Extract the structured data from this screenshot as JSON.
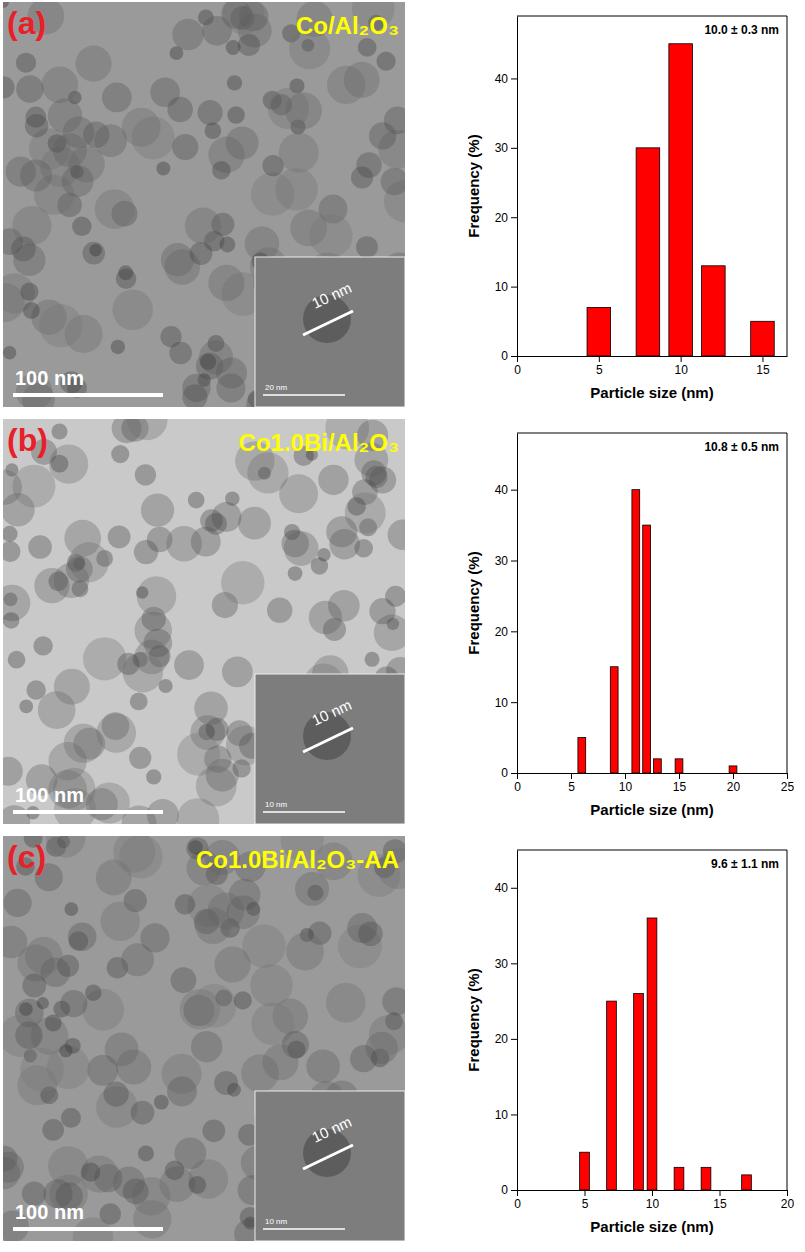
{
  "chart_data": [
    {
      "type": "bar",
      "panel_label": "(a)",
      "title": "Co/Al₂O₃",
      "scale_bar": "100 nm",
      "inset_labels": [
        "10 nm",
        "20 nm"
      ],
      "annotation": "10.0 ± 0.3 nm",
      "x_label": "Particle size (nm)",
      "y_label": "Frequency (%)",
      "x": [
        5,
        8,
        10,
        12,
        15
      ],
      "values": [
        7,
        30,
        45,
        13,
        5
      ],
      "color": "#ff0000",
      "xlim": [
        0,
        16.5
      ],
      "xticks": [
        0,
        5,
        10,
        15
      ],
      "ylim": [
        0,
        49
      ],
      "yticks": [
        0,
        10,
        20,
        30,
        40
      ]
    },
    {
      "type": "bar",
      "panel_label": "(b)",
      "title": "Co1.0Bi/Al₂O₃",
      "scale_bar": "100 nm",
      "inset_labels": [
        "10 nm",
        "10 nm"
      ],
      "annotation": "10.8 ± 0.5 nm",
      "x_label": "Particle size (nm)",
      "y_label": "Frequency (%)",
      "x": [
        6,
        9,
        11,
        12,
        13,
        15,
        20
      ],
      "values": [
        5,
        15,
        40,
        35,
        2,
        2,
        1
      ],
      "color": "#ff0000",
      "xlim": [
        0,
        25
      ],
      "xticks": [
        0,
        5,
        10,
        15,
        20,
        25
      ],
      "ylim": [
        0,
        48
      ],
      "yticks": [
        0,
        10,
        20,
        30,
        40
      ]
    },
    {
      "type": "bar",
      "panel_label": "(c)",
      "title": "Co1.0Bi/Al₂O₃-AA",
      "scale_bar": "100 nm",
      "inset_labels": [
        "10 nm",
        "10 nm"
      ],
      "annotation": "9.6 ± 1.1 nm",
      "x_label": "Particle size (nm)",
      "y_label": "Frequency (%)",
      "x": [
        5,
        7,
        9,
        10,
        12,
        14,
        17
      ],
      "values": [
        5,
        25,
        26,
        36,
        3,
        3,
        2
      ],
      "color": "#ff0000",
      "xlim": [
        0,
        20
      ],
      "xticks": [
        0,
        5,
        10,
        15,
        20
      ],
      "ylim": [
        0,
        45
      ],
      "yticks": [
        0,
        10,
        20,
        30,
        40
      ]
    }
  ]
}
